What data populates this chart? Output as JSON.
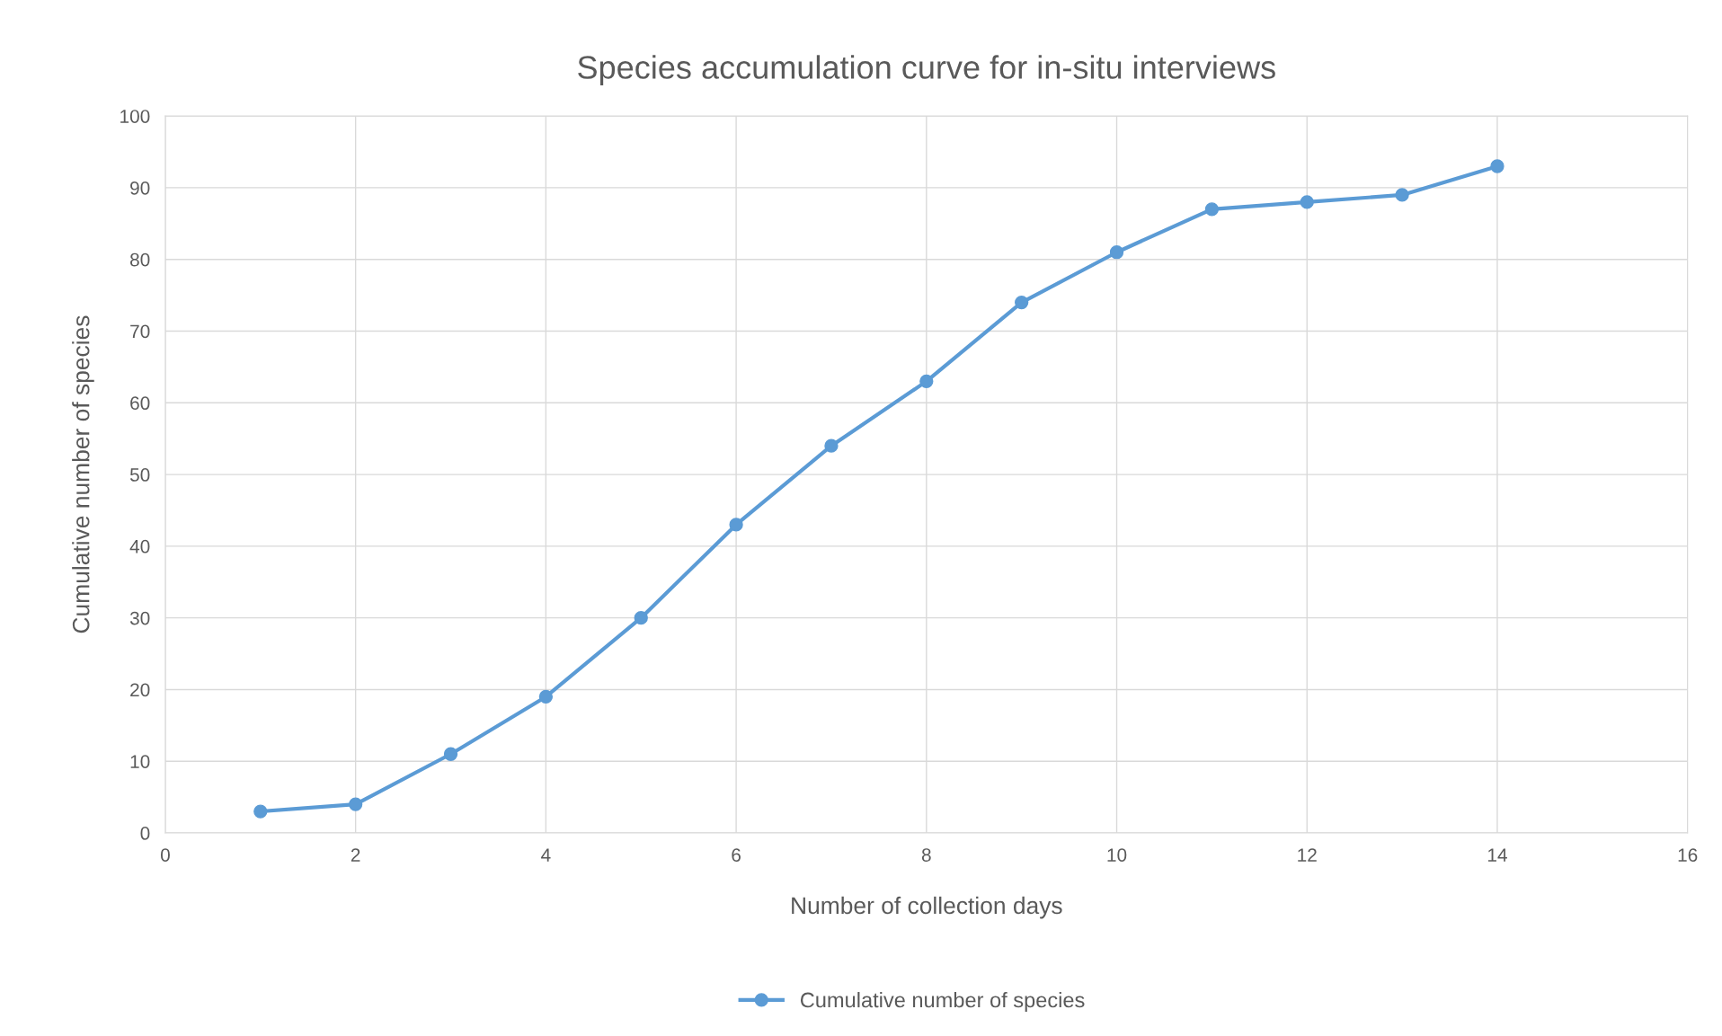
{
  "chart_data": {
    "type": "line",
    "title": "Species accumulation curve for in-situ interviews",
    "xlabel": "Number of collection days",
    "ylabel": "Cumulative number of species",
    "x": [
      1,
      2,
      3,
      4,
      5,
      6,
      7,
      8,
      9,
      10,
      11,
      12,
      13,
      14
    ],
    "series": [
      {
        "name": "Cumulative number of species",
        "color": "#5b9bd5",
        "values": [
          3,
          4,
          11,
          19,
          30,
          43,
          54,
          63,
          74,
          81,
          87,
          88,
          89,
          93
        ]
      }
    ],
    "xlim": [
      0,
      16
    ],
    "xticks": [
      0,
      2,
      4,
      6,
      8,
      10,
      12,
      14,
      16
    ],
    "ylim": [
      0,
      100
    ],
    "yticks": [
      0,
      10,
      20,
      30,
      40,
      50,
      60,
      70,
      80,
      90,
      100
    ],
    "grid": true,
    "legend": "bottom",
    "marker": "circle",
    "line_style": "solid"
  }
}
